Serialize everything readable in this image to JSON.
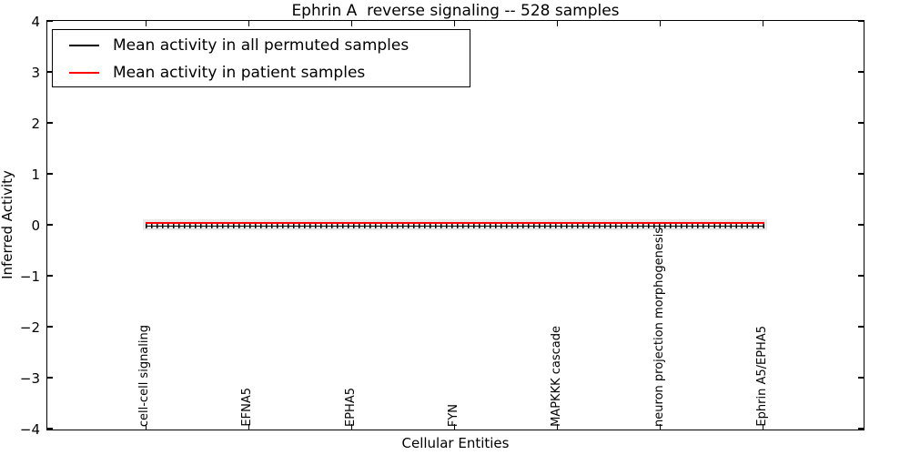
{
  "title": "Ephrin A  reverse signaling -- 528 samples",
  "legend": {
    "entries": [
      {
        "label": "Mean activity in all permuted samples",
        "color": "#000000"
      },
      {
        "label": "Mean activity in patient samples",
        "color": "#ff0000"
      }
    ]
  },
  "chart_data": {
    "type": "line",
    "title": "Ephrin A  reverse signaling -- 528 samples",
    "xlabel": "Cellular Entities",
    "ylabel": "Inferred Activity",
    "ylim": [
      -4,
      4
    ],
    "yticks": [
      4,
      3,
      2,
      1,
      0,
      -1,
      -2,
      -3,
      -4
    ],
    "categories": [
      "cell-cell signaling",
      "EFNA5",
      "EPHA5",
      "FYN",
      "MAPKKK cascade",
      "neuron projection morphogenesis",
      "Ephrin A5/EPHA5"
    ],
    "series": [
      {
        "name": "Mean activity in all permuted samples",
        "color": "#000000",
        "marker": "vertical-dash",
        "values": [
          -0.03,
          -0.03,
          -0.03,
          -0.03,
          -0.03,
          -0.03,
          -0.03
        ]
      },
      {
        "name": "Mean activity in patient samples",
        "color": "#ff0000",
        "marker": "none",
        "values": [
          0.03,
          0.03,
          0.03,
          0.03,
          0.03,
          0.03,
          0.03
        ]
      }
    ],
    "band": {
      "low": -0.11,
      "high": 0.11,
      "color": "#e8e8e8",
      "series": "Mean activity in all permuted samples"
    },
    "n_points_estimate": 114,
    "grid": false,
    "legend_position": "upper left",
    "x_fraction_start": 0.121,
    "x_fraction_end": 0.878
  }
}
